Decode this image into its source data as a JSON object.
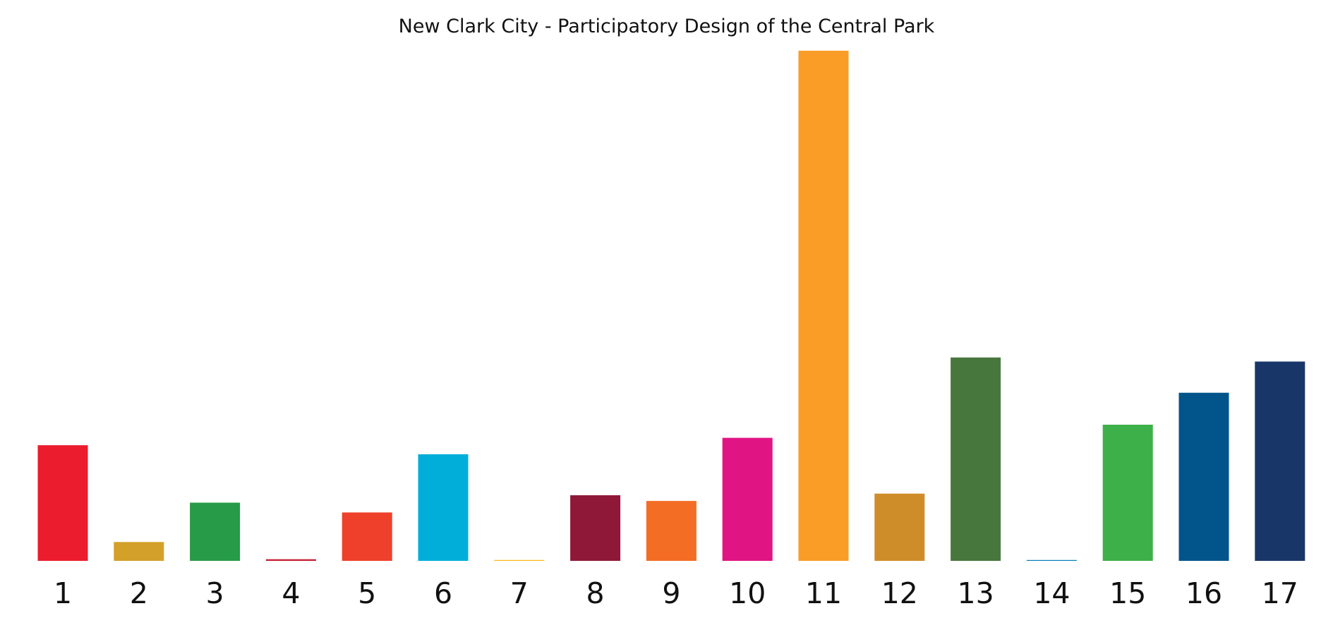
{
  "chart_data": {
    "type": "bar",
    "title": "New Clark City - Participatory Design of the Central Park",
    "xlabel": "",
    "ylabel": "",
    "categories": [
      "1",
      "2",
      "3",
      "4",
      "5",
      "6",
      "7",
      "8",
      "9",
      "10",
      "11",
      "12",
      "13",
      "14",
      "15",
      "16",
      "17"
    ],
    "values": [
      141,
      23,
      71,
      2,
      59,
      130,
      1,
      80,
      73,
      150,
      622,
      82,
      248,
      1,
      166,
      205,
      243
    ],
    "colors": [
      "#EB1C2D",
      "#D3A029",
      "#279B48",
      "#C31F33",
      "#EF402B",
      "#00AED9",
      "#FDB713",
      "#8F1838",
      "#F36D25",
      "#E11484",
      "#F99D26",
      "#CF8D2A",
      "#48773E",
      "#007DBC",
      "#3EB049",
      "#02558B",
      "#183668"
    ],
    "ylim": [
      0,
      640
    ],
    "grid": false,
    "legend": "none"
  }
}
